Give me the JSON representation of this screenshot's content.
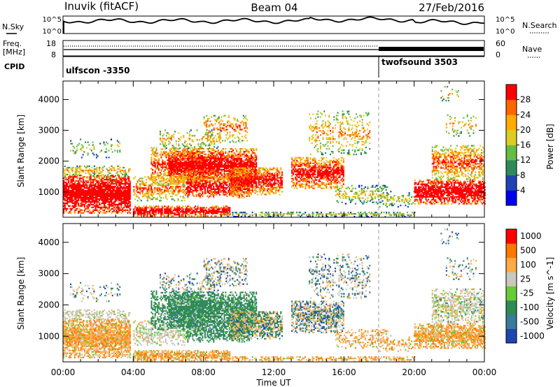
{
  "header": {
    "station": "Inuvik (fitACF)",
    "beam": "Beam 04",
    "date": "27/Feb/2016"
  },
  "top_panels": {
    "nsky": {
      "label": "N.Sky",
      "ticks": [
        "10^5",
        "10^0"
      ]
    },
    "nsearch": {
      "label": "N.Search",
      "ticks": [
        "10^5",
        "10^0"
      ]
    },
    "freq": {
      "label_line1": "Freq.",
      "label_line2": "[MHz]",
      "ticks": [
        "18",
        "8"
      ]
    },
    "nave": {
      "label": "Nave",
      "ticks": [
        "60",
        "0"
      ]
    },
    "cpid": {
      "label": "CPID",
      "modes": [
        {
          "name": "ulfscon -3350",
          "start_hour": 0
        },
        {
          "name": "twofsound 3503",
          "start_hour": 18
        }
      ]
    }
  },
  "chart_data": [
    {
      "type": "heatmap",
      "title": "",
      "xlabel": "",
      "ylabel": "Slant Range [km]",
      "xlim": [
        0,
        24
      ],
      "ylim": [
        180,
        4600
      ],
      "x_ticks": [
        "00:00",
        "04:00",
        "08:00",
        "12:00",
        "16:00",
        "20:00",
        "00:00"
      ],
      "y_ticks": [
        1000,
        2000,
        3000,
        4000
      ],
      "colorbar": {
        "label": "Power [dB]",
        "levels": [
          0,
          4,
          8,
          12,
          16,
          20,
          24,
          28,
          32
        ],
        "tick_labels": [
          "4",
          "8",
          "12",
          "16",
          "20",
          "24",
          "28"
        ],
        "colors": [
          "#0000ee",
          "#1f44b2",
          "#2e8b57",
          "#66bb44",
          "#ddcc22",
          "#ffaa00",
          "#ff6600",
          "#ff0000"
        ]
      },
      "value_range": [
        0,
        32
      ]
    },
    {
      "type": "heatmap",
      "title": "",
      "xlabel": "Time UT",
      "ylabel": "Slant Range [km]",
      "xlim": [
        0,
        24
      ],
      "ylim": [
        180,
        4600
      ],
      "x_ticks": [
        "00:00",
        "04:00",
        "08:00",
        "12:00",
        "16:00",
        "20:00",
        "00:00"
      ],
      "y_ticks": [
        1000,
        2000,
        3000,
        4000
      ],
      "colorbar": {
        "label": "Velocity [m s^-1]",
        "tick_labels": [
          "1000",
          "500",
          "100",
          "25",
          "-25",
          "-100",
          "-500",
          "-1000"
        ],
        "colors": [
          "#1f44b2",
          "#3a7a9a",
          "#2e8b57",
          "#66cc33",
          "#c8c8bc",
          "#ffaa44",
          "#ff7700",
          "#ff0000"
        ]
      },
      "value_range": [
        -1000,
        1000
      ]
    }
  ]
}
